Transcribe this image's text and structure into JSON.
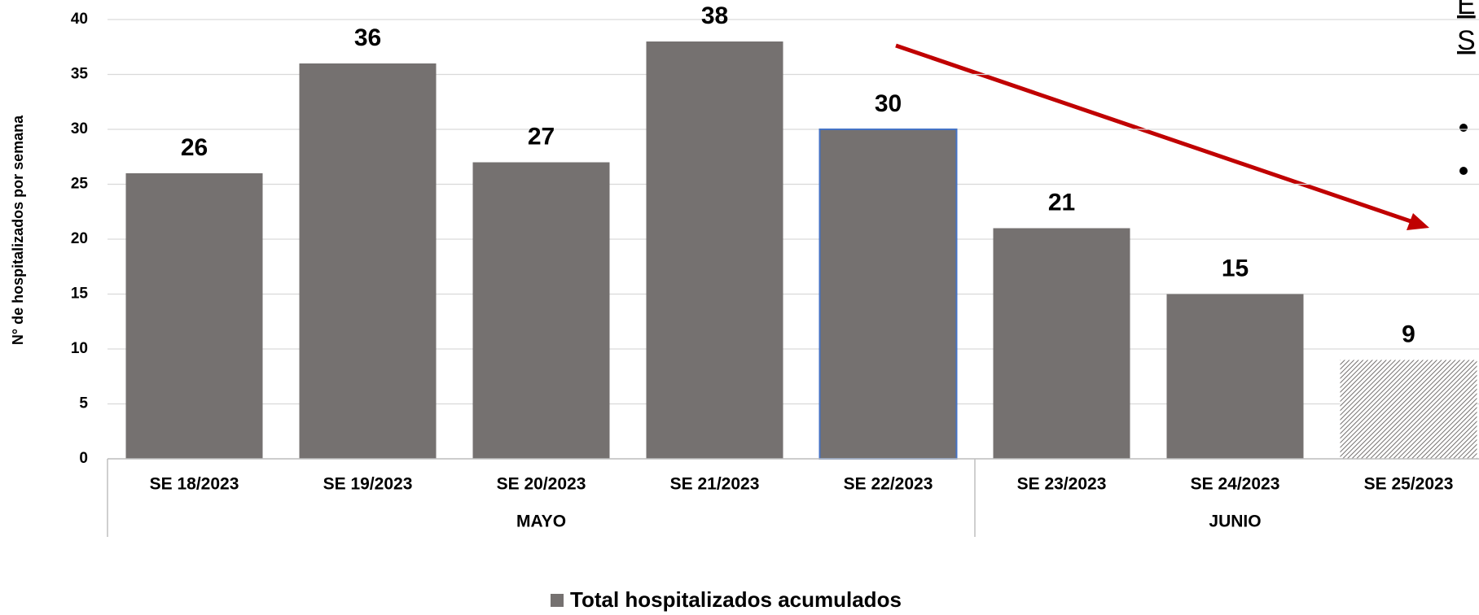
{
  "chart_data": {
    "type": "bar",
    "y_axis_label": "N° de hospitalizados por semana",
    "categories": [
      "SE 18/2023",
      "SE 19/2023",
      "SE 20/2023",
      "SE 21/2023",
      "SE 22/2023",
      "SE 23/2023",
      "SE 24/2023",
      "SE 25/2023"
    ],
    "groups": [
      {
        "label": "MAYO",
        "size": 5
      },
      {
        "label": "JUNIO",
        "size": 3
      }
    ],
    "series": [
      {
        "name": "Total hospitalizados acumulados",
        "color": "#757170",
        "values": [
          26,
          36,
          27,
          38,
          30,
          21,
          15,
          9
        ]
      }
    ],
    "outlined_index": 4,
    "hatched_index": 7,
    "ylim": [
      0,
      40
    ],
    "yticks": [
      0,
      5,
      10,
      15,
      20,
      25,
      30,
      35,
      40
    ],
    "grid": true,
    "legend": "bottom",
    "side_text": [
      "E",
      "S"
    ]
  }
}
